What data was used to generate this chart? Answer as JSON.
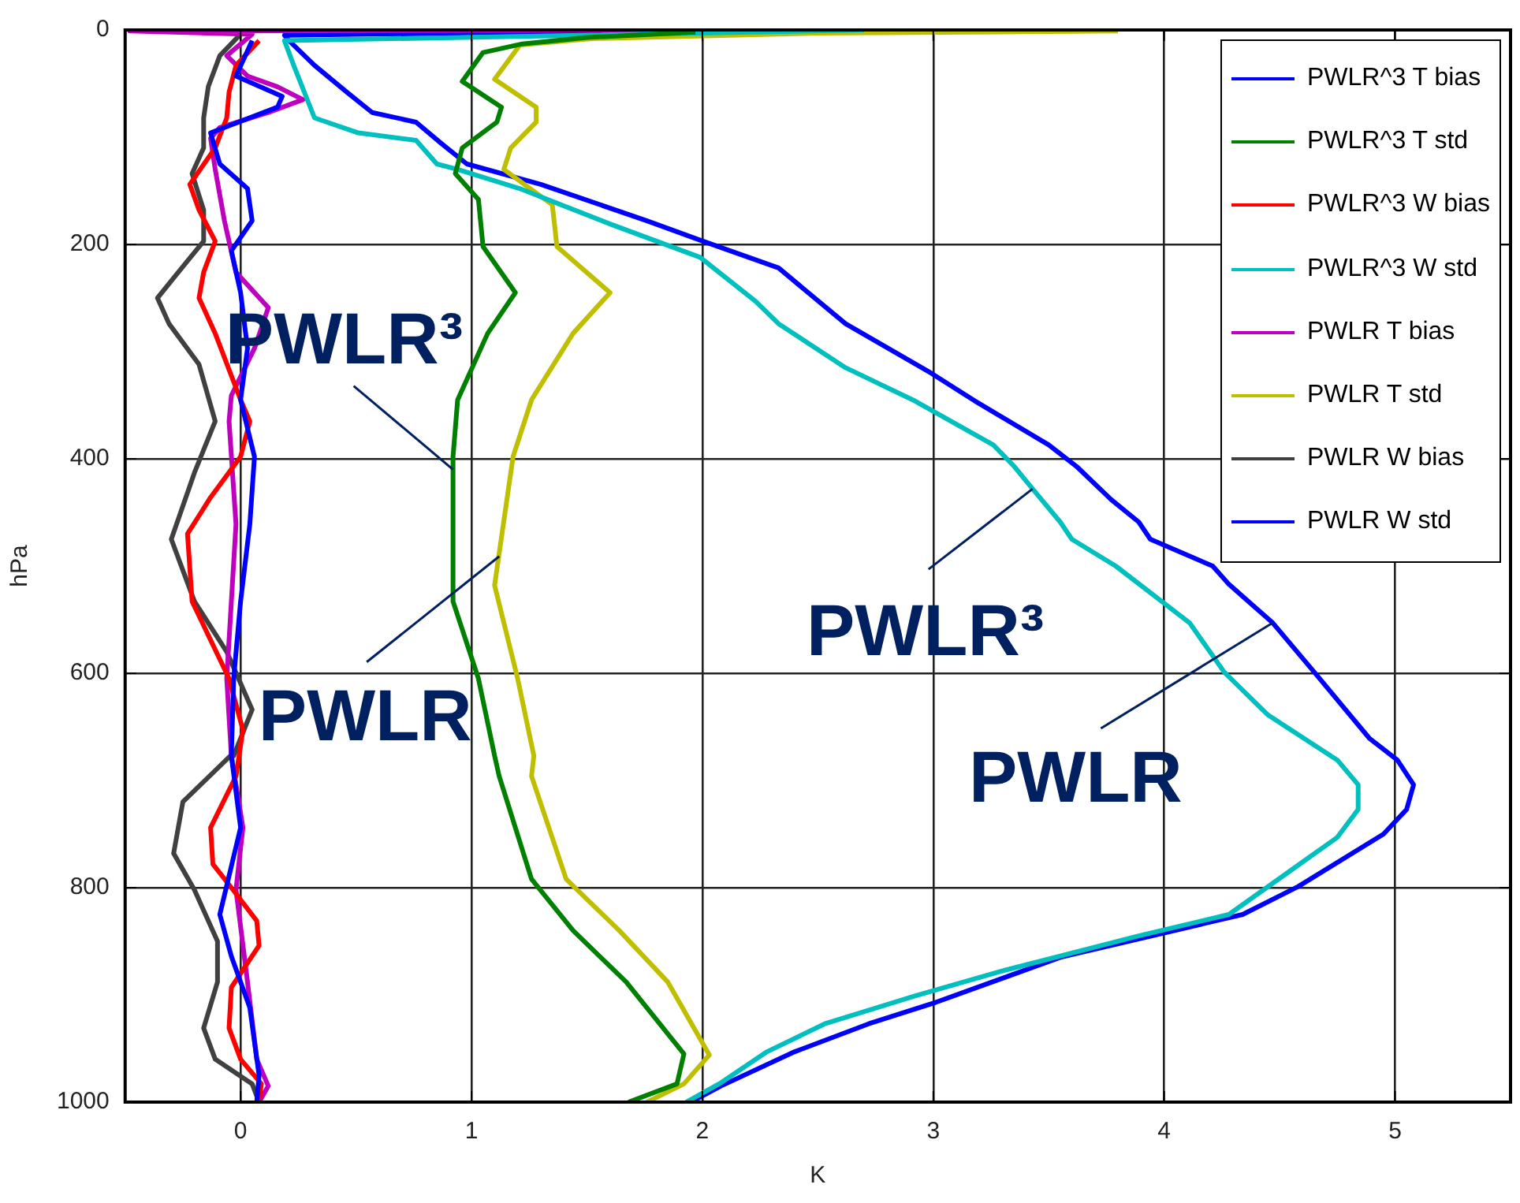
{
  "chart_data": {
    "type": "line",
    "xlabel": "K",
    "ylabel": "hPa",
    "xlim": [
      -0.5,
      5.5
    ],
    "ylim": [
      1000,
      0
    ],
    "xticks": [
      0,
      1,
      2,
      3,
      4,
      5
    ],
    "yticks": [
      0,
      200,
      400,
      600,
      800,
      1000
    ],
    "grid": true,
    "legend": "top right",
    "marker": "none",
    "line_style": "solid",
    "series": [
      {
        "name": "PWLR^3 T bias",
        "color": "#0000ff",
        "x": [
          0.05,
          -0.02,
          0.18,
          0.16,
          -0.13,
          -0.09,
          0.03,
          0.05,
          -0.04,
          0.0,
          0.03,
          0.0,
          0.06,
          0.04,
          0.0,
          -0.03,
          -0.04,
          0.0,
          -0.09,
          -0.04,
          0.04,
          0.08,
          0.07
        ],
        "values": [
          10,
          43,
          62,
          72,
          96,
          125,
          148,
          178,
          206,
          245,
          297,
          345,
          398,
          461,
          533,
          605,
          677,
          744,
          825,
          864,
          912,
          975,
          1000
        ]
      },
      {
        "name": "PWLR^3 T std",
        "color": "#008000",
        "x": [
          1.97,
          1.5,
          1.22,
          1.05,
          0.96,
          1.13,
          1.11,
          0.96,
          0.93,
          1.03,
          1.05,
          1.19,
          1.07,
          0.94,
          0.92,
          0.92,
          1.03,
          1.1,
          1.12,
          1.26,
          1.44,
          1.67,
          1.92,
          1.89,
          1.68
        ],
        "values": [
          2,
          7,
          13,
          21,
          48,
          72,
          86,
          110,
          134,
          158,
          202,
          245,
          283,
          345,
          398,
          533,
          605,
          677,
          696,
          792,
          840,
          888,
          955,
          983,
          1000
        ]
      },
      {
        "name": "PWLR^3 W bias",
        "color": "#ff0000",
        "x": [
          0.08,
          -0.02,
          -0.05,
          -0.06,
          -0.11,
          -0.22,
          -0.18,
          -0.11,
          -0.16,
          -0.18,
          -0.11,
          0.0,
          0.04,
          0.0,
          -0.13,
          -0.23,
          -0.21,
          -0.05,
          0.01,
          -0.02,
          -0.13,
          -0.12,
          -0.04,
          0.07,
          0.08,
          -0.04,
          -0.05,
          0.0,
          0.09,
          0.08
        ],
        "values": [
          10,
          33,
          58,
          82,
          110,
          144,
          168,
          197,
          226,
          250,
          283,
          345,
          365,
          398,
          436,
          470,
          533,
          605,
          653,
          696,
          744,
          778,
          800,
          831,
          854,
          893,
          931,
          960,
          983,
          998
        ]
      },
      {
        "name": "PWLR^3 W std",
        "color": "#00bfbf",
        "x": [
          2.7,
          0.19,
          0.23,
          0.32,
          0.51,
          0.76,
          0.85,
          0.94,
          1.21,
          1.6,
          1.99,
          2.23,
          2.33,
          2.62,
          2.92,
          3.26,
          3.35,
          3.43,
          3.55,
          3.6,
          3.79,
          4.11,
          4.26,
          4.45,
          4.75,
          4.84,
          4.84,
          4.75,
          4.58,
          4.28,
          3.89,
          3.31,
          2.92,
          2.53,
          2.28,
          2.08,
          1.93
        ],
        "values": [
          0,
          10,
          33,
          82,
          96,
          103,
          125,
          130,
          148,
          181,
          212,
          253,
          274,
          315,
          346,
          387,
          407,
          428,
          459,
          475,
          500,
          553,
          599,
          639,
          681,
          704,
          727,
          753,
          779,
          825,
          845,
          877,
          901,
          927,
          953,
          982,
          1000
        ]
      },
      {
        "name": "PWLR T bias",
        "color": "#bf00bf",
        "x": [
          1.73,
          -0.48,
          0.05,
          -0.06,
          0.03,
          0.16,
          0.27,
          0.12,
          -0.09,
          -0.13,
          -0.11,
          -0.07,
          -0.02,
          0.12,
          0.06,
          -0.04,
          -0.05,
          -0.02,
          -0.04,
          -0.06,
          -0.04,
          0.01,
          -0.02,
          0.03,
          0.07,
          0.12,
          0.08
        ],
        "values": [
          0,
          1,
          4,
          24,
          43,
          53,
          65,
          77,
          91,
          101,
          130,
          178,
          226,
          259,
          297,
          341,
          365,
          461,
          533,
          605,
          677,
          744,
          802,
          888,
          960,
          985,
          1000
        ]
      },
      {
        "name": "PWLR T std",
        "color": "#bfbf00",
        "x": [
          3.8,
          2.5,
          1.53,
          1.21,
          1.1,
          1.28,
          1.28,
          1.17,
          1.14,
          1.35,
          1.37,
          1.6,
          1.44,
          1.26,
          1.18,
          1.1,
          1.2,
          1.27,
          1.26,
          1.41,
          1.64,
          1.85,
          2.03,
          1.92,
          1.76
        ],
        "values": [
          1,
          3,
          8,
          14,
          46,
          72,
          86,
          110,
          130,
          163,
          202,
          245,
          283,
          345,
          398,
          518,
          605,
          677,
          696,
          792,
          840,
          888,
          956,
          983,
          1000
        ]
      },
      {
        "name": "PWLR W bias",
        "color": "#404040",
        "x": [
          0.0,
          -0.09,
          -0.14,
          -0.16,
          -0.16,
          -0.21,
          -0.16,
          -0.16,
          -0.27,
          -0.36,
          -0.31,
          -0.18,
          -0.11,
          -0.2,
          -0.3,
          -0.2,
          -0.06,
          0.05,
          -0.03,
          -0.02,
          -0.25,
          -0.29,
          -0.2,
          -0.1,
          -0.1,
          -0.16,
          -0.11,
          0.05,
          0.08
        ],
        "values": [
          4,
          24,
          53,
          82,
          110,
          134,
          168,
          197,
          226,
          250,
          274,
          312,
          365,
          413,
          475,
          533,
          580,
          634,
          677,
          672,
          720,
          768,
          802,
          850,
          888,
          931,
          960,
          983,
          1000
        ]
      },
      {
        "name": "PWLR W std",
        "color": "#0000ff",
        "x": [
          1.97,
          0.19,
          0.21,
          0.32,
          0.46,
          0.57,
          0.76,
          0.87,
          0.98,
          1.3,
          1.76,
          1.99,
          2.33,
          2.62,
          2.99,
          3.18,
          3.5,
          3.62,
          3.77,
          3.89,
          3.94,
          4.21,
          4.28,
          4.47,
          4.65,
          4.89,
          5.01,
          5.08,
          5.05,
          4.95,
          4.58,
          4.34,
          3.55,
          3.01,
          2.72,
          2.4,
          2.08,
          1.95
        ],
        "values": [
          0,
          5,
          10,
          33,
          58,
          77,
          86,
          106,
          125,
          144,
          178,
          196,
          222,
          274,
          320,
          346,
          387,
          407,
          438,
          459,
          475,
          500,
          517,
          553,
          599,
          661,
          681,
          704,
          727,
          750,
          799,
          825,
          865,
          907,
          927,
          953,
          985,
          1000
        ]
      }
    ],
    "annotations": [
      {
        "text": "PWLR³",
        "x": 0.92,
        "y": 410
      },
      {
        "text": "PWLR",
        "x": 1.12,
        "y": 491
      },
      {
        "text": "PWLR³",
        "x": 3.43,
        "y": 428
      },
      {
        "text": "PWLR",
        "x": 4.47,
        "y": 553
      }
    ]
  }
}
